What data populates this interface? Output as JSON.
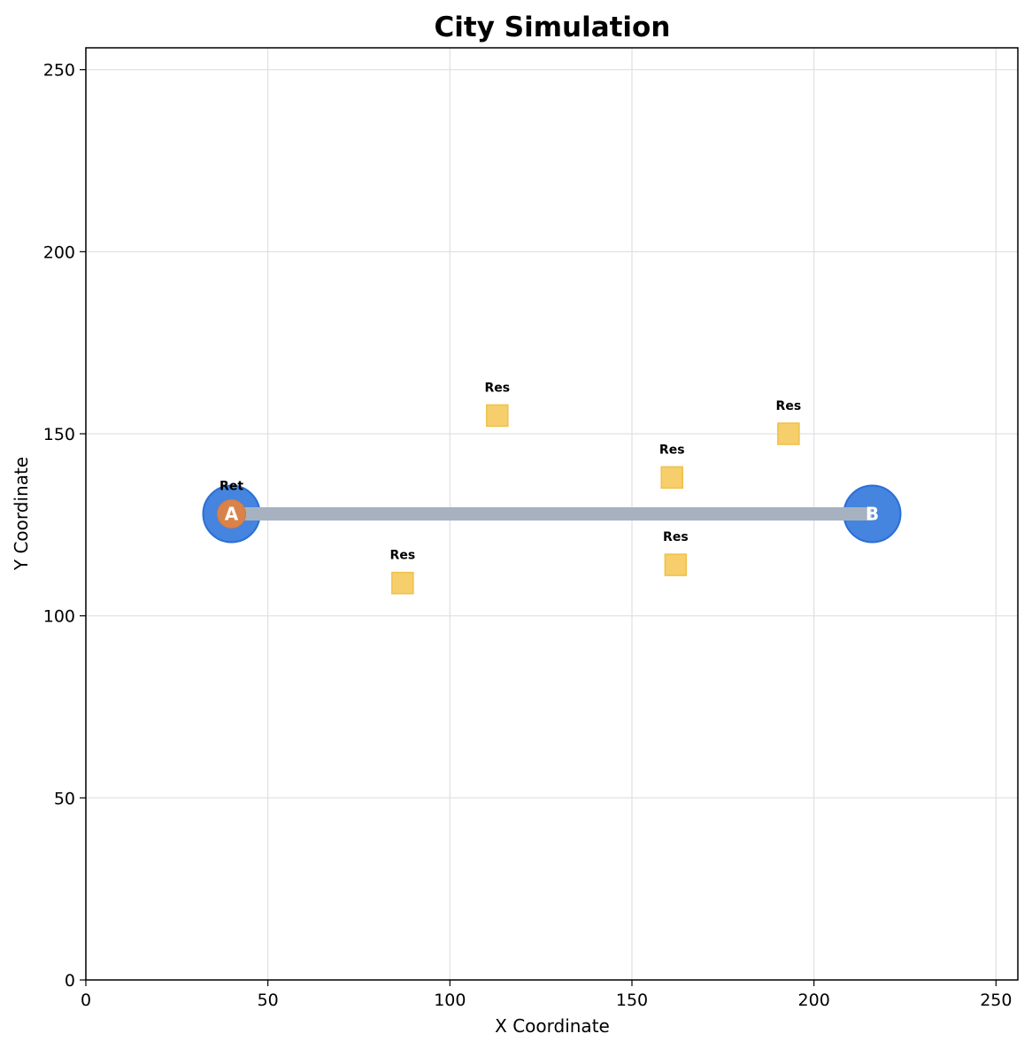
{
  "chart_data": {
    "type": "scatter",
    "title": "City Simulation",
    "xlabel": "X Coordinate",
    "ylabel": "Y Coordinate",
    "xlim": [
      0,
      256
    ],
    "ylim": [
      0,
      256
    ],
    "xticks": [
      0,
      50,
      100,
      150,
      200,
      250
    ],
    "yticks": [
      0,
      50,
      100,
      150,
      200,
      250
    ],
    "grid": true,
    "line": {
      "from": [
        40,
        128
      ],
      "to": [
        216,
        128
      ],
      "color": "#a7b2c1"
    },
    "stations": [
      {
        "label": "A",
        "x": 40,
        "y": 128,
        "color": "#3b7ddd"
      },
      {
        "label": "B",
        "x": 216,
        "y": 128,
        "color": "#3b7ddd"
      }
    ],
    "points": [
      {
        "label": "Ret",
        "x": 40,
        "y": 128,
        "marker": "circle",
        "color": "#d9834a"
      },
      {
        "label": "Res",
        "x": 113,
        "y": 155,
        "marker": "square",
        "color": "#f5cb63"
      },
      {
        "label": "Res",
        "x": 193,
        "y": 150,
        "marker": "square",
        "color": "#f5cb63"
      },
      {
        "label": "Res",
        "x": 161,
        "y": 138,
        "marker": "square",
        "color": "#f5cb63"
      },
      {
        "label": "Res",
        "x": 87,
        "y": 109,
        "marker": "square",
        "color": "#f5cb63"
      },
      {
        "label": "Res",
        "x": 162,
        "y": 114,
        "marker": "square",
        "color": "#f5cb63"
      }
    ]
  }
}
